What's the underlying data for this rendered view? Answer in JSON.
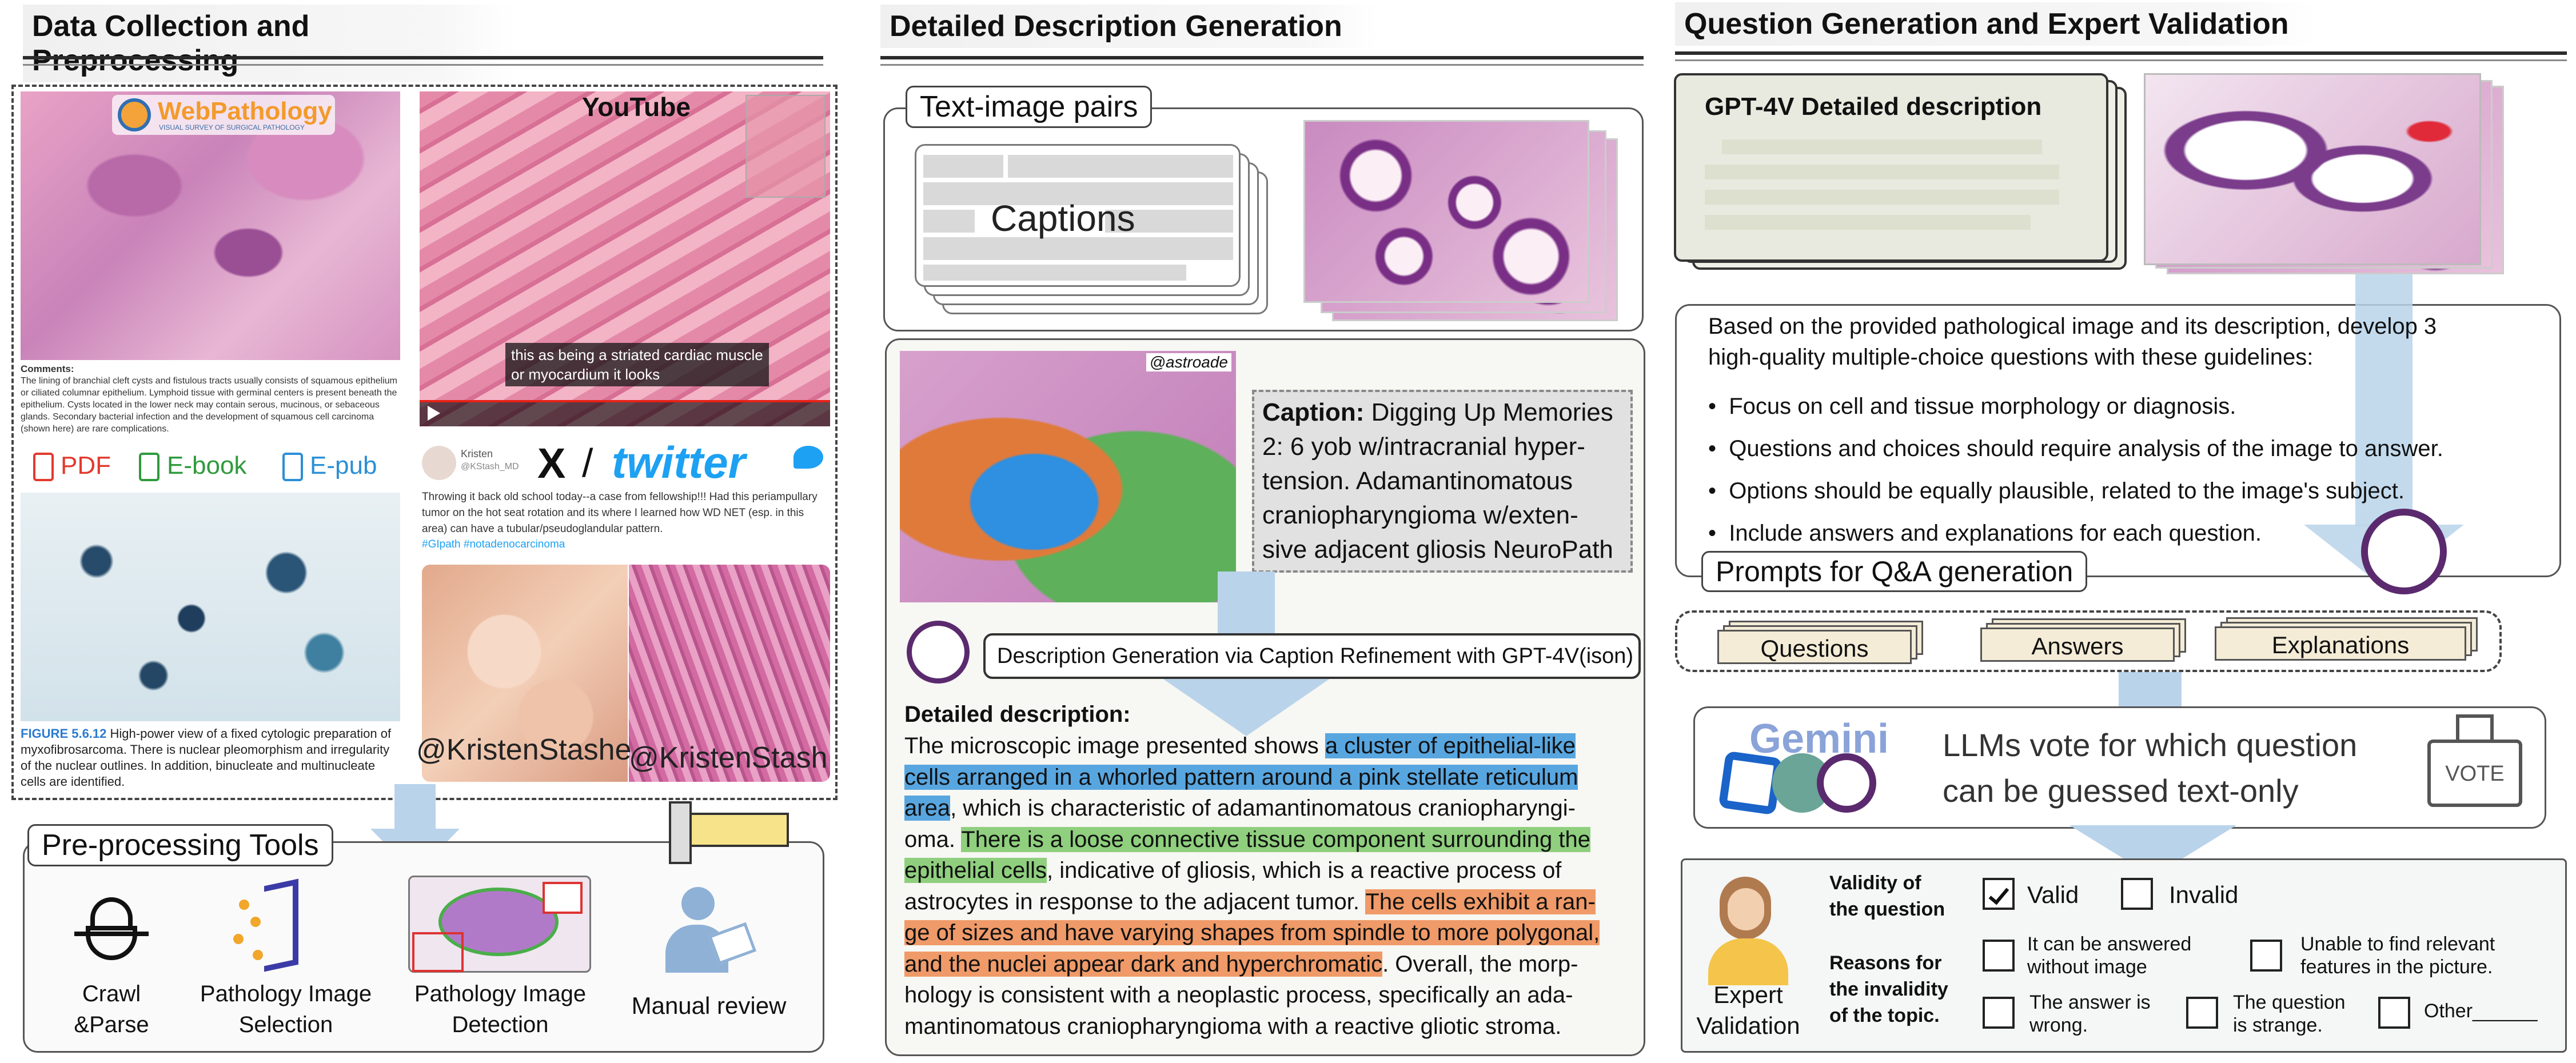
{
  "sections": {
    "left_title": "Data Collection and Preprocessing",
    "middle_title": "Detailed Description Generation",
    "right_title": "Question Generation and Expert Validation"
  },
  "left": {
    "webpathology_logo": "WebPathology",
    "webpathology_tagline": "VISUAL SURVEY OF SURGICAL PATHOLOGY",
    "comments_heading": "Comments:",
    "comments_text": "The lining of branchial cleft cysts and fistulous tracts usually consists of squamous epithelium or ciliated columnar epithelium. Lymphoid tissue with germinal centers is present beneath the epithelium. Cysts located in the lower neck may contain serous, mucinous, or sebaceous glands. Secondary bacterial infection and the development of squamous cell carcinoma (shown here) are rare complications.",
    "youtube_logo": "YouTube",
    "video_caption_line1": "this as being a striated cardiac muscle",
    "video_caption_line2": "or myocardium it looks",
    "tweet_name": "Kristen",
    "tweet_handle": "@KStash_MD",
    "x_logo": "X",
    "slash": "/",
    "twitter_logo": "twitter",
    "tweet_text": "Throwing it back old school today--a case from fellowship!!! Had this periampullary tumor on the hot seat rotation and its where I learned how WD NET (esp. in this area) can have a tubular/pseudoglandular pattern.",
    "tweet_tags": "#GIpath #notadenocarcinoma",
    "watermark1": "@KristenStashe",
    "watermark2": "@KristenStash",
    "formats": [
      "PDF",
      "E-book",
      "E-pub"
    ],
    "figure_label": "FIGURE 5.6.12",
    "figure_text": "High-power view of a fixed cytologic preparation of myxofibrosarcoma. There is nuclear pleomorphism and irregularity of the nuclear outlines. In addition, binucleate and multinucleate cells are identified.",
    "tools_title": "Pre-processing Tools",
    "tools": [
      {
        "label_line1": "Crawl",
        "label_line2": "&Parse"
      },
      {
        "label_line1": "Pathology Image",
        "label_line2": "Selection"
      },
      {
        "label_line1": "Pathology Image",
        "label_line2": "Detection"
      },
      {
        "label_line1": "Manual review",
        "label_line2": ""
      }
    ]
  },
  "middle": {
    "pairs_title": "Text-image pairs",
    "captions_label": "Captions",
    "handle": "@astroade",
    "caption_label": "Caption:",
    "caption_lines": [
      "Digging Up Memories",
      "2: 6 yob w/intracranial hyper-",
      "tension. Adamantinomatous",
      "craniopharyngioma w/exten-",
      "sive adjacent gliosis NeuroPath"
    ],
    "gpt_step": "Description Generation via Caption Refinement with GPT-4V(ison)",
    "detailed_heading": "Detailed description:",
    "desc_lines": [
      [
        {
          "t": "The microscopic image presented shows ",
          "h": ""
        },
        {
          "t": "a cluster of epithelial-like",
          "h": "blue"
        }
      ],
      [
        {
          "t": "cells arranged in a whorled pattern around a pink stellate reticulum",
          "h": "blue"
        }
      ],
      [
        {
          "t": "area",
          "h": "blue"
        },
        {
          "t": ", which is characteristic of adamantinomatous craniopharyngi-",
          "h": ""
        }
      ],
      [
        {
          "t": "oma. ",
          "h": ""
        },
        {
          "t": "There is a loose connective tissue component surrounding the",
          "h": "green"
        }
      ],
      [
        {
          "t": "epithelial cells",
          "h": "green"
        },
        {
          "t": ", indicative of gliosis, which is a reactive process of",
          "h": ""
        }
      ],
      [
        {
          "t": "astrocytes in response to the adjacent tumor. ",
          "h": ""
        },
        {
          "t": "The cells exhibit a ran-",
          "h": "orange"
        }
      ],
      [
        {
          "t": "ge of sizes and have varying shapes from spindle to more polygonal,",
          "h": "orange"
        }
      ],
      [
        {
          "t": "and the nuclei appear dark and hyperchromatic",
          "h": "orange"
        },
        {
          "t": ". Overall, the morp-",
          "h": ""
        }
      ],
      [
        {
          "t": "hology is consistent with a neoplastic process, specifically an ada-",
          "h": ""
        }
      ],
      [
        {
          "t": "mantinomatous craniopharyngioma with a reactive gliotic stroma.",
          "h": ""
        }
      ]
    ]
  },
  "right": {
    "gpt4v_desc_title": "GPT-4V Detailed description",
    "prompt_intro_line1": "Based on the provided pathological image and its description, develop  3",
    "prompt_intro_line2": "high-quality multiple-choice questions with these guidelines:",
    "bullets": [
      "Focus on cell and tissue morphology or diagnosis.",
      "Questions and choices should require analysis of the image to answer.",
      "Options should be equally plausible, related to the image's subject.",
      "Include answers and explanations for each question."
    ],
    "prompts_label": "Prompts for Q&A generation",
    "qa_cards": [
      "Questions",
      "Answers",
      "Explanations"
    ],
    "gemini_logo": "Gemini",
    "vote_line1": "LLMs vote for which question",
    "vote_line2": "can be guessed text-only",
    "vote_box": "VOTE",
    "expert_line1": "Expert",
    "expert_line2": "Validation",
    "validity_label_line1": "Validity of",
    "validity_label_line2": "the question",
    "valid": "Valid",
    "invalid": "Invalid",
    "reasons_line1": "Reasons for",
    "reasons_line2": "the invalidity",
    "reasons_line3": "of the topic.",
    "reason1_line1": "It can be answered",
    "reason1_line2": "without image",
    "reason2_line1": "Unable to find relevant",
    "reason2_line2": "features in the picture.",
    "reason3_line1": "The answer is",
    "reason3_line2": "wrong.",
    "reason4_line1": "The question",
    "reason4_line2": "is strange.",
    "reason5": "Other______",
    "valid_checked": true
  },
  "colors": {
    "highlight_blue": "#58a6e0",
    "highlight_green": "#8fcf7e",
    "highlight_orange": "#ef9a68",
    "arrow_blue": "#b9d3ea",
    "twitter_blue": "#1da1f2",
    "youtube_red": "#e62117"
  }
}
